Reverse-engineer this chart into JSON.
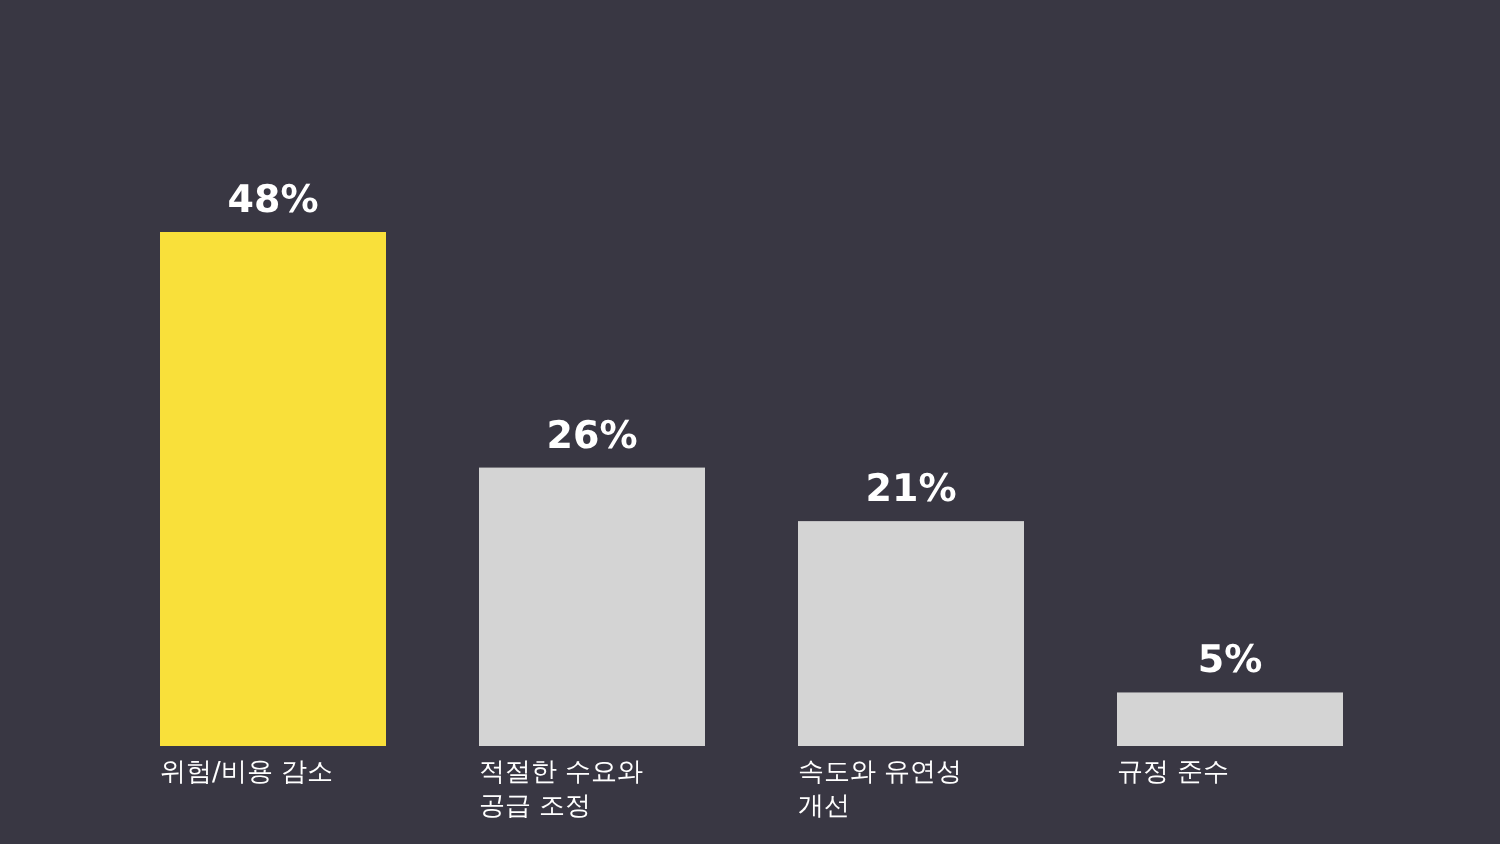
{
  "chart_data": {
    "type": "bar",
    "categories": [
      "위험/비용 감소",
      "적절한 수요와 공급 조정",
      "속도와 유연성 개선",
      "규정 준수"
    ],
    "values": [
      48,
      26,
      21,
      5
    ],
    "colors": [
      "#f9e03a",
      "#d4d4d4",
      "#d4d4d4",
      "#d4d4d4"
    ],
    "value_labels": [
      "48%",
      "26%",
      "21%",
      "5%"
    ]
  }
}
